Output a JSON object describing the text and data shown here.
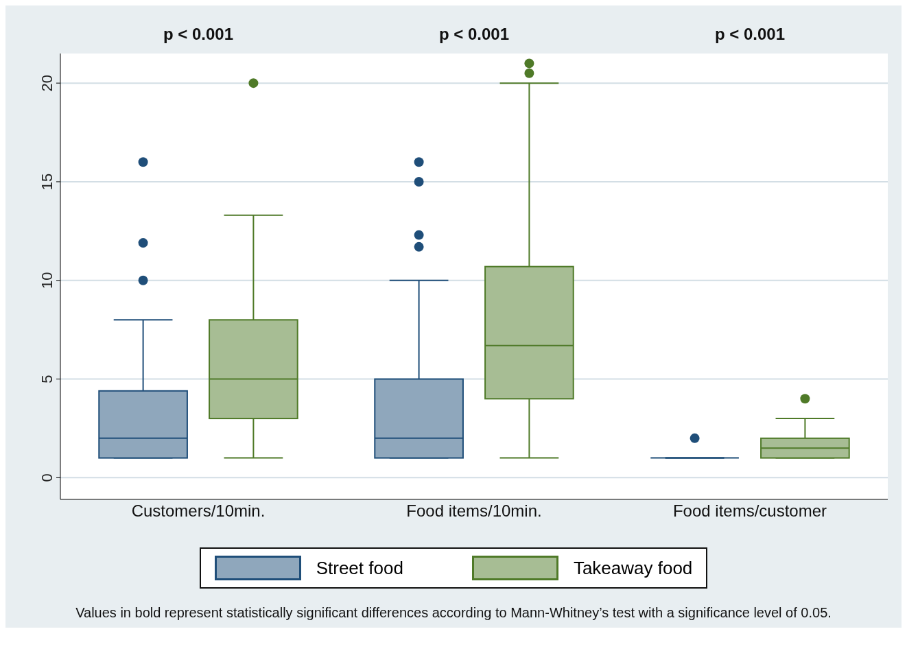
{
  "chart_data": {
    "type": "box",
    "categories": [
      "Customers/10min.",
      "Food items/10min.",
      "Food items/customer"
    ],
    "series": [
      {
        "name": "Street food",
        "color": "#1f4e79",
        "boxes": [
          {
            "low": 1,
            "q1": 1,
            "median": 2,
            "q3": 4.4,
            "high": 8,
            "outliers": [
              10,
              11.9,
              16
            ]
          },
          {
            "low": 1,
            "q1": 1,
            "median": 2,
            "q3": 5,
            "high": 10,
            "outliers": [
              11.7,
              12.3,
              15,
              16
            ]
          },
          {
            "low": 1,
            "q1": 1,
            "median": 1,
            "q3": 1,
            "high": 1,
            "outliers": [
              2
            ]
          }
        ]
      },
      {
        "name": "Takeaway food",
        "color": "#4f7a28",
        "boxes": [
          {
            "low": 1,
            "q1": 3,
            "median": 5,
            "q3": 8,
            "high": 13.3,
            "outliers": [
              20
            ]
          },
          {
            "low": 1,
            "q1": 4,
            "median": 6.7,
            "q3": 10.7,
            "high": 20,
            "outliers": [
              20.5,
              21
            ]
          },
          {
            "low": 1,
            "q1": 1,
            "median": 1.5,
            "q3": 2,
            "high": 3,
            "outliers": [
              4
            ]
          }
        ]
      }
    ],
    "ylim": [
      -1.1,
      21.5
    ],
    "yticks": [
      0,
      5,
      10,
      15,
      20
    ],
    "grid": "y",
    "legend": "bottom",
    "annotations": [
      "p < 0.001",
      "p < 0.001",
      "p < 0.001",
      "Values in bold represent statistically significant differences according to Mann-Whitney’s test with a significance level of 0.05."
    ]
  }
}
